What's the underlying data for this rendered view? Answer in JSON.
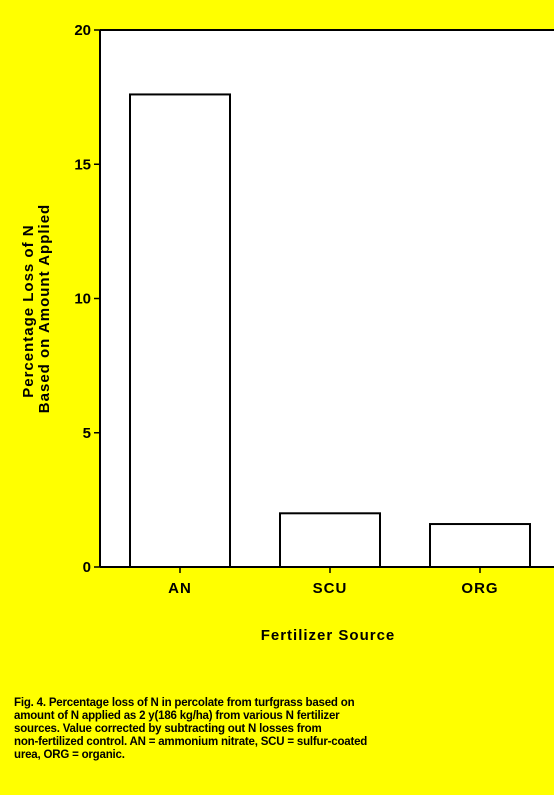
{
  "chart_data": {
    "type": "bar",
    "categories": [
      "AN",
      "SCU",
      "ORG"
    ],
    "values": [
      17.6,
      2.0,
      1.6
    ],
    "ylabel_line1": "Percentage Loss of N",
    "ylabel_line2": "Based on Amount Applied",
    "xlabel": "Fertilizer Source",
    "ylim": [
      0,
      20
    ],
    "yticks": [
      0,
      5,
      10,
      15,
      20
    ],
    "ytick_labels": [
      "0",
      "5",
      "10",
      "15",
      "20"
    ],
    "grid": false,
    "colors": {
      "background": "#ffff00",
      "plot_area": "#ffffff",
      "bar_fill": "#ffffff",
      "stroke": "#000000"
    }
  },
  "caption": "Fig. 4.  Percentage loss of N in percolate from turfgrass based on\namount of N applied as 2 y(186 kg/ha) from various N fertilizer\nsources.  Value corrected by subtracting out N losses from\nnon-fertilized control.  AN = ammonium nitrate, SCU = sulfur-coated\nurea, ORG = organic."
}
